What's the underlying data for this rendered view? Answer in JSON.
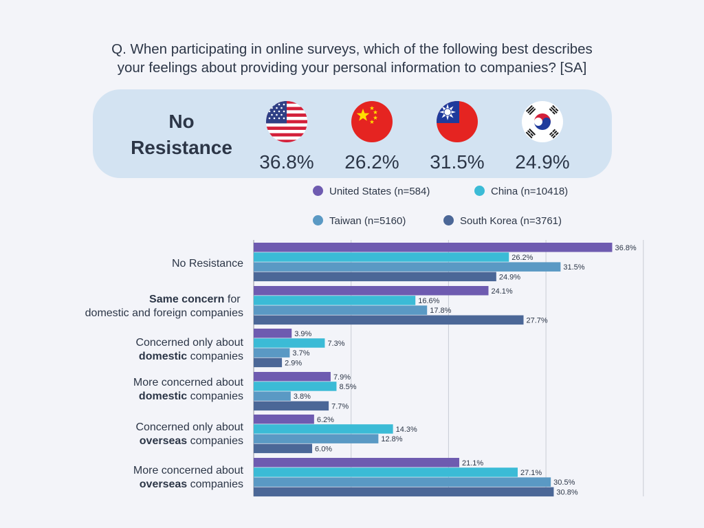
{
  "question": {
    "line1": "Q. When participating in online surveys, which of the following best describes",
    "line2": "your feelings about providing your personal information to companies? [SA]"
  },
  "summary": {
    "title_line1": "No",
    "title_line2": "Resistance",
    "items": [
      {
        "flag": "us-flag-icon",
        "value": "36.8%"
      },
      {
        "flag": "china-flag-icon",
        "value": "26.2%"
      },
      {
        "flag": "taiwan-flag-icon",
        "value": "31.5%"
      },
      {
        "flag": "south-korea-flag-icon",
        "value": "24.9%"
      }
    ]
  },
  "colors": {
    "united_states": "#6e5bb0",
    "china": "#3bbbd6",
    "taiwan": "#5a99c4",
    "south_korea": "#4b6797",
    "background": "#f3f4f9",
    "summary_box": "#d3e3f2",
    "gridline": "#c8cbd4",
    "axis": "#8c919c"
  },
  "chart_data": {
    "type": "bar",
    "orientation": "horizontal",
    "grid": true,
    "legend_placement": "top-right",
    "xlim": [
      0,
      40
    ],
    "categories": [
      {
        "plain": "No Resistance"
      },
      {
        "bold1": "Same concern",
        "rest1": " for",
        "plain2": "domestic and foreign companies"
      },
      {
        "plain1": "Concerned only about",
        "bold2": "domestic",
        "rest2": " companies"
      },
      {
        "plain1": "More concerned about",
        "bold2": "domestic",
        "rest2": " companies"
      },
      {
        "plain1": "Concerned only about",
        "bold2": "overseas",
        "rest2": " companies"
      },
      {
        "plain1": "More concerned about",
        "bold2": "overseas",
        "rest2": " companies"
      }
    ],
    "series": [
      {
        "name": "United States (n=584)",
        "color_key": "united_states",
        "values": [
          36.8,
          24.1,
          3.9,
          7.9,
          6.2,
          21.1
        ]
      },
      {
        "name": "China (n=10418)",
        "color_key": "china",
        "values": [
          26.2,
          16.6,
          7.3,
          8.5,
          14.3,
          27.1
        ]
      },
      {
        "name": "Taiwan (n=5160)",
        "color_key": "taiwan",
        "values": [
          31.5,
          17.8,
          3.7,
          3.8,
          12.8,
          30.5
        ]
      },
      {
        "name": "South Korea (n=3761)",
        "color_key": "south_korea",
        "values": [
          24.9,
          27.7,
          2.9,
          7.7,
          6.0,
          30.8
        ]
      }
    ],
    "value_suffix": "%"
  }
}
